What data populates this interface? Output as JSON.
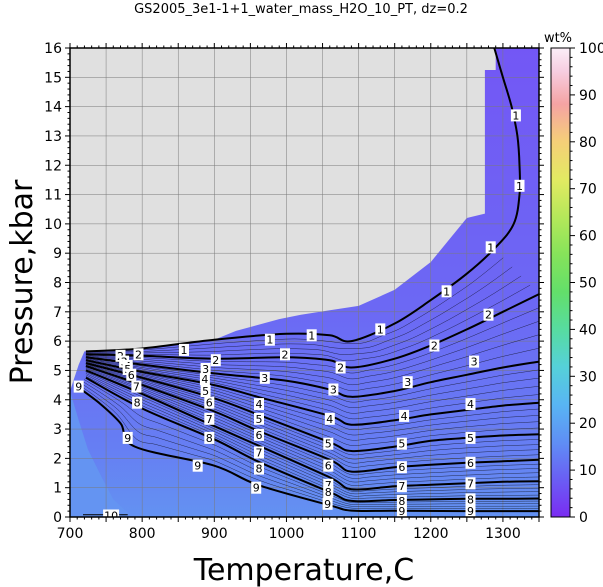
{
  "chart_data": {
    "type": "heatmap",
    "title": "GS2005_3e1-1+1_water_mass_H2O_10_PT, dz=0.2",
    "xlabel": "Temperature,C",
    "ylabel": "Pressure,kbar",
    "xlim": [
      700,
      1350
    ],
    "ylim": [
      0,
      16
    ],
    "x_ticks": [
      700,
      800,
      900,
      1000,
      1100,
      1200,
      1300
    ],
    "y_ticks": [
      0,
      1,
      2,
      3,
      4,
      5,
      6,
      7,
      8,
      9,
      10,
      11,
      12,
      13,
      14,
      15,
      16
    ],
    "grid": true,
    "colorbar": {
      "title": "wt%",
      "range": [
        0,
        100
      ],
      "ticks": [
        0,
        10,
        20,
        30,
        40,
        50,
        60,
        70,
        80,
        90,
        100
      ]
    },
    "colors": {
      "plot_background": "#e0e0e0",
      "low_value": "#6f5ef5",
      "mid_value": "#6a73f3",
      "high_value": "#6494f2",
      "contour": "#000000"
    },
    "field_boundary": [
      [
        1350,
        16.0
      ],
      [
        1290,
        16.0
      ],
      [
        1290,
        15.25
      ],
      [
        1275,
        15.25
      ],
      [
        1275,
        10.35
      ],
      [
        1250,
        10.2
      ],
      [
        1200,
        8.7
      ],
      [
        1150,
        7.75
      ],
      [
        1100,
        7.2
      ],
      [
        1060,
        7.05
      ],
      [
        1020,
        6.9
      ],
      [
        990,
        6.75
      ],
      [
        960,
        6.55
      ],
      [
        930,
        6.35
      ],
      [
        900,
        6.05
      ],
      [
        870,
        5.95
      ],
      [
        840,
        5.85
      ],
      [
        790,
        5.75
      ],
      [
        720,
        5.65
      ],
      [
        712,
        5.2
      ],
      [
        704,
        4.6
      ],
      [
        700,
        4.3
      ],
      [
        700,
        0
      ],
      [
        1350,
        0
      ]
    ],
    "contours": [
      {
        "label": "1",
        "points": [
          [
            722,
            5.65
          ],
          [
            800,
            5.75
          ],
          [
            900,
            6.05
          ],
          [
            1000,
            6.25
          ],
          [
            1060,
            6.2
          ],
          [
            1090,
            6.0
          ],
          [
            1150,
            6.6
          ],
          [
            1200,
            7.4
          ],
          [
            1250,
            8.3
          ],
          [
            1290,
            9.2
          ],
          [
            1315,
            10.0
          ],
          [
            1323,
            11.0
          ],
          [
            1323,
            12.0
          ],
          [
            1320,
            13.0
          ],
          [
            1312,
            14.0
          ],
          [
            1300,
            15.0
          ],
          [
            1288,
            16.0
          ]
        ]
      },
      {
        "label": "2",
        "points": [
          [
            722,
            5.55
          ],
          [
            800,
            5.5
          ],
          [
            900,
            5.4
          ],
          [
            1000,
            5.45
          ],
          [
            1060,
            5.35
          ],
          [
            1090,
            5.1
          ],
          [
            1150,
            5.4
          ],
          [
            1200,
            5.85
          ],
          [
            1250,
            6.4
          ],
          [
            1300,
            7.0
          ],
          [
            1350,
            7.6
          ]
        ]
      },
      {
        "label": "3",
        "points": [
          [
            722,
            5.45
          ],
          [
            800,
            5.2
          ],
          [
            900,
            4.9
          ],
          [
            1000,
            4.65
          ],
          [
            1060,
            4.35
          ],
          [
            1090,
            4.1
          ],
          [
            1150,
            4.3
          ],
          [
            1200,
            4.6
          ],
          [
            1250,
            4.85
          ],
          [
            1300,
            5.1
          ],
          [
            1350,
            5.3
          ]
        ]
      },
      {
        "label": "4",
        "points": [
          [
            722,
            5.35
          ],
          [
            800,
            4.95
          ],
          [
            900,
            4.5
          ],
          [
            960,
            4.1
          ],
          [
            1060,
            3.45
          ],
          [
            1090,
            3.15
          ],
          [
            1150,
            3.3
          ],
          [
            1200,
            3.5
          ],
          [
            1250,
            3.65
          ],
          [
            1300,
            3.8
          ],
          [
            1350,
            3.9
          ]
        ]
      },
      {
        "label": "5",
        "points": [
          [
            722,
            5.25
          ],
          [
            800,
            4.75
          ],
          [
            900,
            4.05
          ],
          [
            960,
            3.5
          ],
          [
            1060,
            2.55
          ],
          [
            1090,
            2.25
          ],
          [
            1150,
            2.4
          ],
          [
            1200,
            2.6
          ],
          [
            1250,
            2.7
          ],
          [
            1300,
            2.78
          ],
          [
            1350,
            2.82
          ]
        ]
      },
      {
        "label": "6",
        "points": [
          [
            722,
            5.15
          ],
          [
            800,
            4.5
          ],
          [
            900,
            3.6
          ],
          [
            960,
            2.95
          ],
          [
            1060,
            1.95
          ],
          [
            1090,
            1.55
          ],
          [
            1150,
            1.7
          ],
          [
            1200,
            1.78
          ],
          [
            1250,
            1.85
          ],
          [
            1300,
            1.9
          ],
          [
            1350,
            1.95
          ]
        ]
      },
      {
        "label": "7",
        "points": [
          [
            722,
            5.0
          ],
          [
            800,
            4.2
          ],
          [
            900,
            3.1
          ],
          [
            960,
            2.45
          ],
          [
            1060,
            1.35
          ],
          [
            1090,
            0.95
          ],
          [
            1150,
            1.05
          ],
          [
            1200,
            1.1
          ],
          [
            1250,
            1.15
          ],
          [
            1300,
            1.2
          ],
          [
            1350,
            1.22
          ]
        ]
      },
      {
        "label": "8",
        "points": [
          [
            722,
            4.75
          ],
          [
            800,
            3.7
          ],
          [
            900,
            2.65
          ],
          [
            960,
            1.9
          ],
          [
            1060,
            0.85
          ],
          [
            1090,
            0.55
          ],
          [
            1150,
            0.58
          ],
          [
            1200,
            0.6
          ],
          [
            1250,
            0.62
          ],
          [
            1300,
            0.62
          ],
          [
            1350,
            0.63
          ]
        ]
      },
      {
        "label": "9",
        "points": [
          [
            710,
            4.45
          ],
          [
            740,
            3.9
          ],
          [
            770,
            3.2
          ],
          [
            790,
            2.4
          ],
          [
            900,
            1.75
          ],
          [
            960,
            1.1
          ],
          [
            1060,
            0.4
          ],
          [
            1090,
            0.22
          ],
          [
            1150,
            0.21
          ],
          [
            1250,
            0.2
          ],
          [
            1350,
            0.2
          ]
        ]
      },
      {
        "label": "10",
        "points": [
          [
            718,
            0.08
          ],
          [
            780,
            0.08
          ]
        ]
      }
    ],
    "contour_labels": [
      {
        "text": "1",
        "x": 858,
        "y": 5.7
      },
      {
        "text": "1",
        "x": 977,
        "y": 6.05
      },
      {
        "text": "1",
        "x": 1035,
        "y": 6.2
      },
      {
        "text": "1",
        "x": 1130,
        "y": 6.4
      },
      {
        "text": "1",
        "x": 1222,
        "y": 7.7
      },
      {
        "text": "1",
        "x": 1283,
        "y": 9.2
      },
      {
        "text": "1",
        "x": 1323,
        "y": 11.3
      },
      {
        "text": "1",
        "x": 1318,
        "y": 13.7
      },
      {
        "text": "2",
        "x": 770,
        "y": 5.5
      },
      {
        "text": "2",
        "x": 795,
        "y": 5.55
      },
      {
        "text": "2",
        "x": 902,
        "y": 5.35
      },
      {
        "text": "2",
        "x": 998,
        "y": 5.55
      },
      {
        "text": "2",
        "x": 1075,
        "y": 5.1
      },
      {
        "text": "2",
        "x": 1205,
        "y": 5.85
      },
      {
        "text": "2",
        "x": 1280,
        "y": 6.9
      },
      {
        "text": "3",
        "x": 775,
        "y": 5.3
      },
      {
        "text": "3",
        "x": 888,
        "y": 5.05
      },
      {
        "text": "3",
        "x": 970,
        "y": 4.75
      },
      {
        "text": "3",
        "x": 1065,
        "y": 4.35
      },
      {
        "text": "3",
        "x": 1168,
        "y": 4.6
      },
      {
        "text": "3",
        "x": 1260,
        "y": 5.3
      },
      {
        "text": "4",
        "x": 780,
        "y": 5.15
      },
      {
        "text": "4",
        "x": 887,
        "y": 4.7
      },
      {
        "text": "4",
        "x": 962,
        "y": 3.85
      },
      {
        "text": "4",
        "x": 1060,
        "y": 3.35
      },
      {
        "text": "4",
        "x": 1163,
        "y": 3.45
      },
      {
        "text": "4",
        "x": 1255,
        "y": 3.85
      },
      {
        "text": "5",
        "x": 780,
        "y": 5.05
      },
      {
        "text": "5",
        "x": 888,
        "y": 4.3
      },
      {
        "text": "5",
        "x": 962,
        "y": 3.35
      },
      {
        "text": "5",
        "x": 1058,
        "y": 2.5
      },
      {
        "text": "5",
        "x": 1160,
        "y": 2.5
      },
      {
        "text": "5",
        "x": 1255,
        "y": 2.7
      },
      {
        "text": "6",
        "x": 785,
        "y": 4.85
      },
      {
        "text": "6",
        "x": 893,
        "y": 3.9
      },
      {
        "text": "6",
        "x": 962,
        "y": 2.8
      },
      {
        "text": "6",
        "x": 1058,
        "y": 1.75
      },
      {
        "text": "6",
        "x": 1160,
        "y": 1.7
      },
      {
        "text": "6",
        "x": 1255,
        "y": 1.85
      },
      {
        "text": "7",
        "x": 792,
        "y": 4.45
      },
      {
        "text": "7",
        "x": 893,
        "y": 3.35
      },
      {
        "text": "7",
        "x": 962,
        "y": 2.2
      },
      {
        "text": "7",
        "x": 1058,
        "y": 1.1
      },
      {
        "text": "7",
        "x": 1160,
        "y": 1.05
      },
      {
        "text": "7",
        "x": 1255,
        "y": 1.15
      },
      {
        "text": "8",
        "x": 793,
        "y": 3.9
      },
      {
        "text": "8",
        "x": 893,
        "y": 2.7
      },
      {
        "text": "8",
        "x": 962,
        "y": 1.65
      },
      {
        "text": "8",
        "x": 1058,
        "y": 0.85
      },
      {
        "text": "8",
        "x": 1160,
        "y": 0.55
      },
      {
        "text": "8",
        "x": 1255,
        "y": 0.6
      },
      {
        "text": "9",
        "x": 712,
        "y": 4.45
      },
      {
        "text": "9",
        "x": 780,
        "y": 2.7
      },
      {
        "text": "9",
        "x": 877,
        "y": 1.75
      },
      {
        "text": "9",
        "x": 958,
        "y": 1.0
      },
      {
        "text": "9",
        "x": 1057,
        "y": 0.45
      },
      {
        "text": "9",
        "x": 1160,
        "y": 0.2
      },
      {
        "text": "9",
        "x": 1255,
        "y": 0.2
      },
      {
        "text": "10",
        "x": 757,
        "y": 0.05
      }
    ]
  }
}
